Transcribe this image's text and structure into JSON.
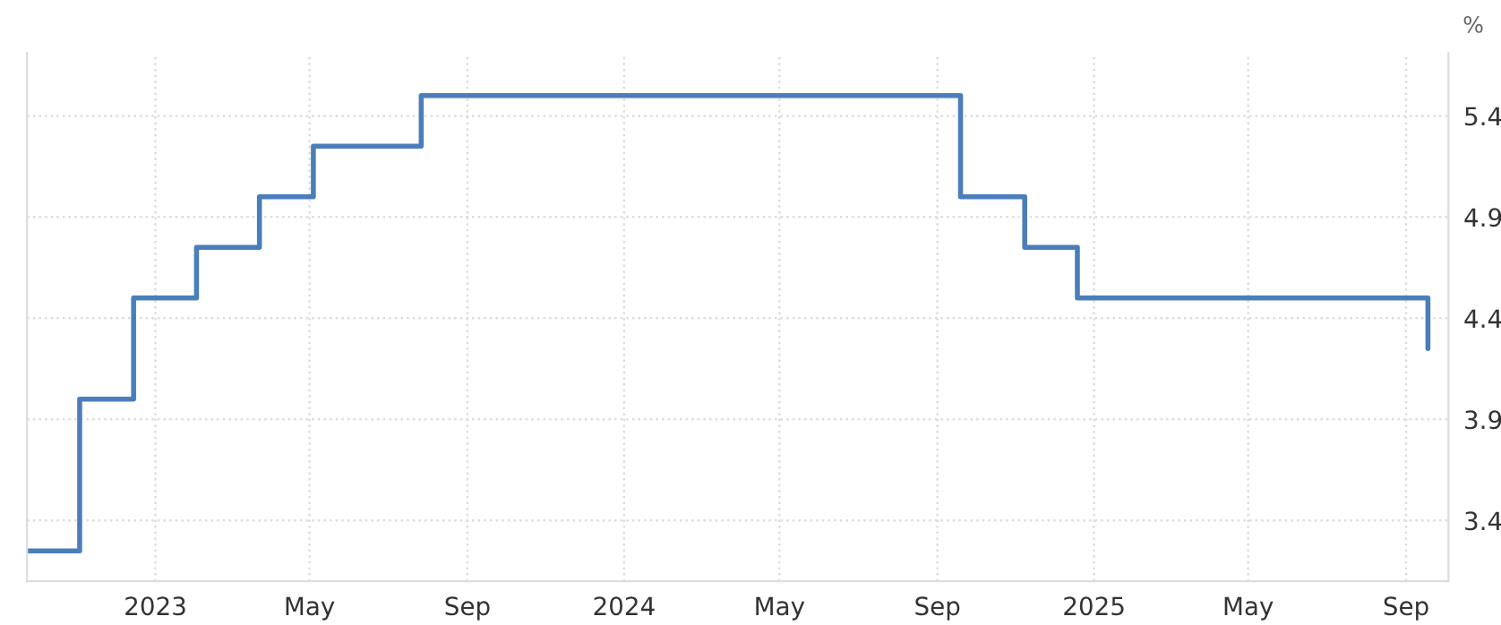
{
  "chart_data": {
    "type": "step",
    "ylabel": "%",
    "x": [
      "2022-09-23",
      "2022-11-03",
      "2022-12-15",
      "2023-02-02",
      "2023-03-23",
      "2023-05-04",
      "2023-07-27",
      "2024-09-19",
      "2024-11-08",
      "2024-12-19",
      "2025-09-18"
    ],
    "series": [
      {
        "color": "#4a7ebb",
        "values": [
          3.25,
          4.0,
          4.5,
          4.75,
          5.0,
          5.25,
          5.5,
          5.0,
          4.75,
          4.5,
          4.25
        ]
      }
    ],
    "xlim": [
      "2022-09-23",
      "2025-10-04"
    ],
    "xticks": [
      {
        "value": "2023-01-01",
        "label": "2023"
      },
      {
        "value": "2023-05-01",
        "label": "May"
      },
      {
        "value": "2023-09-01",
        "label": "Sep"
      },
      {
        "value": "2024-01-01",
        "label": "2024"
      },
      {
        "value": "2024-05-01",
        "label": "May"
      },
      {
        "value": "2024-09-01",
        "label": "Sep"
      },
      {
        "value": "2025-01-01",
        "label": "2025"
      },
      {
        "value": "2025-05-01",
        "label": "May"
      },
      {
        "value": "2025-09-01",
        "label": "Sep"
      }
    ],
    "ylim": [
      3.1,
      5.71
    ],
    "yticks": [
      3.4,
      3.9,
      4.4,
      4.9,
      5.4
    ],
    "grid": true,
    "line_style": "solid",
    "marker": "none"
  }
}
